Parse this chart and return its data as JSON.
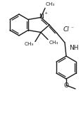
{
  "bg_color": "#ffffff",
  "line_color": "#1a1a1a",
  "line_width": 1.0,
  "figsize": [
    1.16,
    1.9
  ],
  "dpi": 100,
  "xlim": [
    0,
    116
  ],
  "ylim": [
    0,
    190
  ]
}
